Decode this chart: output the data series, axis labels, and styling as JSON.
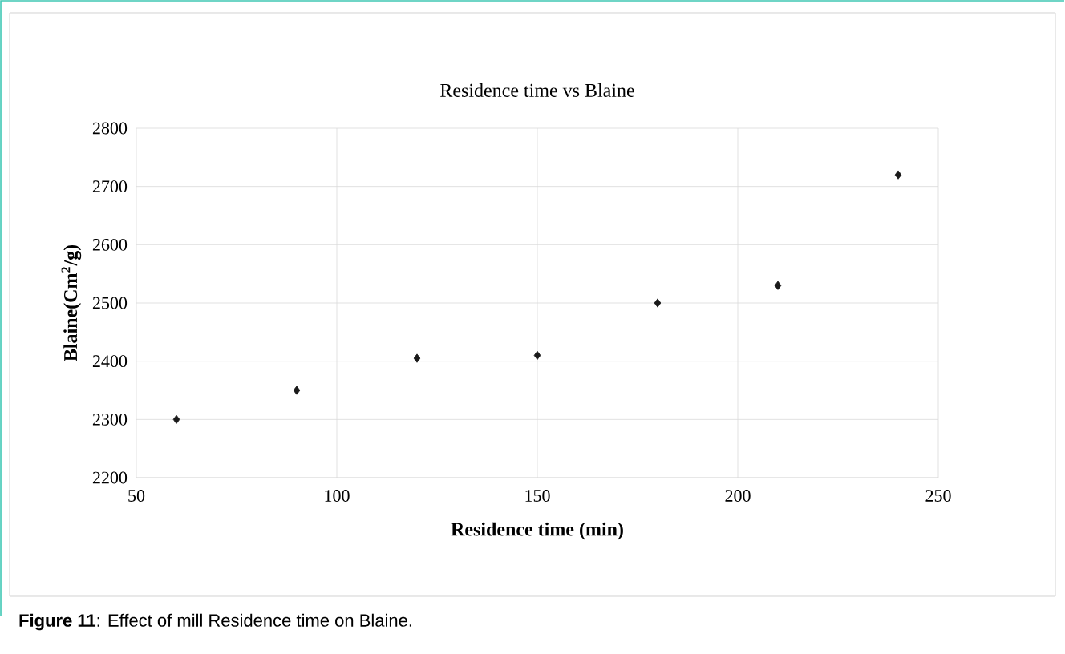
{
  "chart_data": {
    "type": "scatter",
    "title": "Residence time vs Blaine",
    "xlabel": "Residence time (min)",
    "ylabel": "Blaine(Cm$^{2}$/g)",
    "annotations": [
      "**Figure 11**: Effect of mill Residence time on Blaine."
    ],
    "x": [
      60,
      90,
      120,
      150,
      180,
      210,
      240
    ],
    "series": [
      {
        "color": "#1a1a1a",
        "values": [
          2300,
          2350,
          2405,
          2410,
          2500,
          2530,
          2720
        ]
      }
    ],
    "xlim": [
      50,
      250
    ],
    "xticks": [
      50,
      100,
      150,
      200,
      250
    ],
    "ylim": [
      2200,
      2800
    ],
    "yticks": [
      2200,
      2300,
      2400,
      2500,
      2600,
      2700,
      2800
    ],
    "grid": true,
    "marker": "diamond"
  }
}
